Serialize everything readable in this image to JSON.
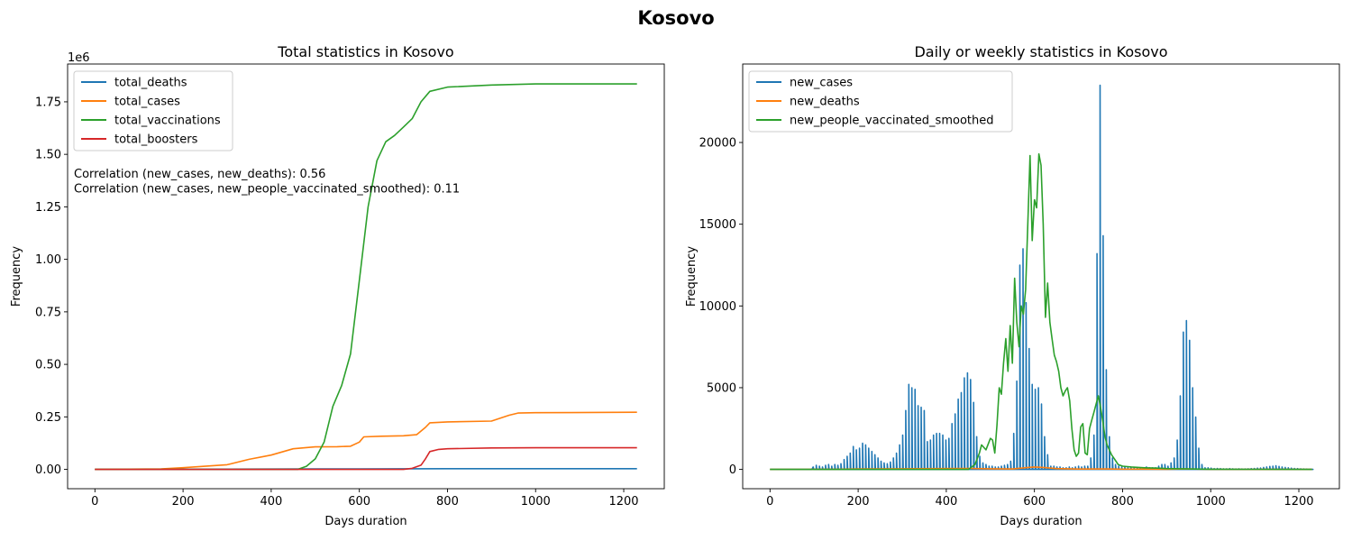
{
  "suptitle": "Kosovo",
  "chart_data": [
    {
      "type": "line",
      "title": "Total statistics in Kosovo",
      "xlabel": "Days duration",
      "ylabel": "Frequency",
      "y_multiplier_label": "1e6",
      "xlim": [
        -62,
        1292
      ],
      "ylim": [
        -0.092,
        1.93
      ],
      "xticks": [
        0,
        200,
        400,
        600,
        800,
        1000,
        1200
      ],
      "yticks": [
        0.0,
        0.25,
        0.5,
        0.75,
        1.0,
        1.25,
        1.5,
        1.75
      ],
      "ytick_labels": [
        "0.00",
        "0.25",
        "0.50",
        "0.75",
        "1.00",
        "1.25",
        "1.50",
        "1.75"
      ],
      "grid": false,
      "legend_position": "upper-left",
      "annotations": [
        "Correlation (new_cases, new_deaths): 0.56",
        "Correlation (new_cases, new_people_vaccinated_smoothed): 0.11"
      ],
      "series": [
        {
          "name": "total_deaths",
          "color": "#1f77b4",
          "x": [
            0,
            100,
            200,
            300,
            400,
            500,
            600,
            700,
            800,
            1000,
            1230
          ],
          "y": [
            0,
            0.0002,
            0.0006,
            0.0012,
            0.0017,
            0.0022,
            0.0026,
            0.0029,
            0.0031,
            0.0032,
            0.0032
          ]
        },
        {
          "name": "total_cases",
          "color": "#ff7f0e",
          "x": [
            0,
            150,
            200,
            250,
            300,
            350,
            400,
            450,
            500,
            550,
            580,
            600,
            610,
            650,
            700,
            730,
            750,
            760,
            800,
            900,
            940,
            960,
            1000,
            1230
          ],
          "y": [
            0,
            0.002,
            0.008,
            0.015,
            0.022,
            0.048,
            0.068,
            0.098,
            0.107,
            0.108,
            0.11,
            0.13,
            0.155,
            0.158,
            0.16,
            0.165,
            0.2,
            0.222,
            0.226,
            0.23,
            0.258,
            0.268,
            0.27,
            0.272
          ]
        },
        {
          "name": "total_vaccinations",
          "color": "#2ca02c",
          "x": [
            0,
            460,
            480,
            500,
            520,
            540,
            560,
            580,
            600,
            620,
            640,
            660,
            680,
            700,
            720,
            740,
            760,
            800,
            900,
            1000,
            1230
          ],
          "y": [
            0,
            0,
            0.015,
            0.05,
            0.13,
            0.3,
            0.4,
            0.55,
            0.9,
            1.25,
            1.47,
            1.56,
            1.59,
            1.63,
            1.67,
            1.75,
            1.8,
            1.82,
            1.83,
            1.835,
            1.835
          ]
        },
        {
          "name": "total_boosters",
          "color": "#d62728",
          "x": [
            0,
            700,
            720,
            740,
            750,
            760,
            780,
            800,
            900,
            1000,
            1230
          ],
          "y": [
            0,
            0,
            0.005,
            0.02,
            0.05,
            0.085,
            0.095,
            0.098,
            0.102,
            0.103,
            0.103
          ]
        }
      ]
    },
    {
      "type": "line",
      "title": "Daily or weekly statistics in Kosovo",
      "xlabel": "Days duration",
      "ylabel": "Frequency",
      "xlim": [
        -62,
        1292
      ],
      "ylim": [
        -1180,
        24800
      ],
      "xticks": [
        0,
        200,
        400,
        600,
        800,
        1000,
        1200
      ],
      "yticks": [
        0,
        5000,
        10000,
        15000,
        20000
      ],
      "grid": false,
      "legend_position": "upper-left",
      "series": [
        {
          "name": "new_cases",
          "color": "#1f77b4",
          "style": "weekly-spikes",
          "x": [
            98,
            105,
            112,
            119,
            126,
            133,
            140,
            147,
            154,
            161,
            168,
            175,
            182,
            189,
            196,
            203,
            210,
            217,
            224,
            231,
            238,
            245,
            252,
            259,
            266,
            273,
            280,
            287,
            294,
            301,
            308,
            315,
            322,
            329,
            336,
            343,
            350,
            357,
            364,
            371,
            378,
            385,
            392,
            399,
            406,
            413,
            420,
            427,
            434,
            441,
            448,
            455,
            462,
            469,
            476,
            483,
            490,
            497,
            504,
            511,
            518,
            525,
            532,
            539,
            546,
            553,
            560,
            567,
            574,
            581,
            588,
            595,
            602,
            609,
            616,
            623,
            630,
            637,
            644,
            651,
            658,
            665,
            672,
            679,
            686,
            693,
            700,
            707,
            714,
            721,
            728,
            735,
            742,
            749,
            756,
            763,
            770,
            777,
            784,
            791,
            798,
            805,
            812,
            819,
            826,
            833,
            840,
            847,
            854,
            861,
            868,
            875,
            882,
            889,
            896,
            903,
            910,
            917,
            924,
            931,
            938,
            945,
            952,
            959,
            966,
            973,
            980,
            987,
            994,
            1001,
            1008,
            1015,
            1022,
            1029,
            1036,
            1043,
            1050,
            1057,
            1064,
            1071,
            1078,
            1085,
            1092,
            1099,
            1106,
            1113,
            1120,
            1127,
            1134,
            1141,
            1148,
            1155,
            1162,
            1169,
            1176,
            1183,
            1190,
            1197,
            1204,
            1211,
            1218,
            1225
          ],
          "y": [
            150,
            250,
            200,
            150,
            250,
            300,
            200,
            300,
            250,
            350,
            600,
            800,
            1000,
            1400,
            1200,
            1300,
            1600,
            1500,
            1300,
            1100,
            900,
            700,
            500,
            400,
            350,
            450,
            700,
            1000,
            1500,
            2100,
            3600,
            5200,
            5000,
            4900,
            3900,
            3800,
            3600,
            1700,
            1800,
            2100,
            2200,
            2200,
            2100,
            1800,
            1900,
            2800,
            3400,
            4300,
            4700,
            5600,
            5900,
            5500,
            4100,
            2000,
            800,
            400,
            300,
            200,
            200,
            150,
            150,
            200,
            250,
            300,
            500,
            2200,
            5400,
            12500,
            13500,
            10200,
            7400,
            5200,
            4900,
            5000,
            4000,
            2000,
            900,
            200,
            200,
            150,
            150,
            100,
            100,
            150,
            100,
            150,
            200,
            150,
            200,
            200,
            700,
            2100,
            13200,
            23500,
            14300,
            6100,
            2000,
            700,
            300,
            200,
            150,
            150,
            100,
            100,
            100,
            100,
            100,
            100,
            150,
            100,
            100,
            100,
            200,
            300,
            300,
            200,
            400,
            700,
            1800,
            4500,
            8400,
            9100,
            7900,
            5000,
            3200,
            1300,
            300,
            100,
            100,
            80,
            50,
            60,
            50,
            40,
            40,
            50,
            40,
            30,
            40,
            30,
            30,
            40,
            50,
            60,
            80,
            90,
            120,
            150,
            180,
            200,
            220,
            180,
            150,
            120,
            100,
            80,
            60,
            50,
            40,
            30,
            20,
            15
          ]
        },
        {
          "name": "new_deaths",
          "color": "#ff7f0e",
          "x": [
            0,
            150,
            200,
            300,
            450,
            500,
            550,
            600,
            620,
            650,
            700,
            760,
            800,
            900,
            940,
            1000,
            1230
          ],
          "y": [
            0,
            10,
            30,
            40,
            60,
            40,
            30,
            150,
            120,
            50,
            20,
            30,
            15,
            10,
            30,
            5,
            0
          ]
        },
        {
          "name": "new_people_vaccinated_smoothed",
          "color": "#2ca02c",
          "x": [
            0,
            450,
            465,
            475,
            480,
            490,
            500,
            505,
            510,
            515,
            520,
            525,
            530,
            535,
            540,
            545,
            550,
            555,
            560,
            565,
            570,
            575,
            580,
            585,
            590,
            595,
            600,
            605,
            610,
            615,
            620,
            625,
            630,
            635,
            640,
            645,
            650,
            655,
            660,
            665,
            670,
            675,
            680,
            685,
            690,
            695,
            700,
            705,
            710,
            715,
            720,
            725,
            730,
            735,
            740,
            745,
            750,
            755,
            760,
            765,
            770,
            775,
            780,
            785,
            790,
            800,
            820,
            850,
            880,
            900,
            950,
            1000,
            1230
          ],
          "y": [
            0,
            0,
            300,
            1000,
            1500,
            1200,
            1900,
            1800,
            1000,
            2700,
            5000,
            4600,
            6500,
            8000,
            6000,
            8800,
            6500,
            11700,
            9000,
            7500,
            10000,
            9500,
            11000,
            15000,
            19200,
            14000,
            16500,
            16000,
            19300,
            18600,
            15000,
            9300,
            11400,
            9000,
            8000,
            7000,
            6600,
            6000,
            5000,
            4500,
            4800,
            5000,
            4200,
            2500,
            1200,
            800,
            1000,
            2600,
            2800,
            1000,
            900,
            2500,
            3000,
            3500,
            4000,
            4500,
            3800,
            3000,
            2000,
            1500,
            1200,
            900,
            700,
            500,
            300,
            200,
            150,
            100,
            80,
            50,
            30,
            10,
            0
          ]
        }
      ]
    }
  ]
}
